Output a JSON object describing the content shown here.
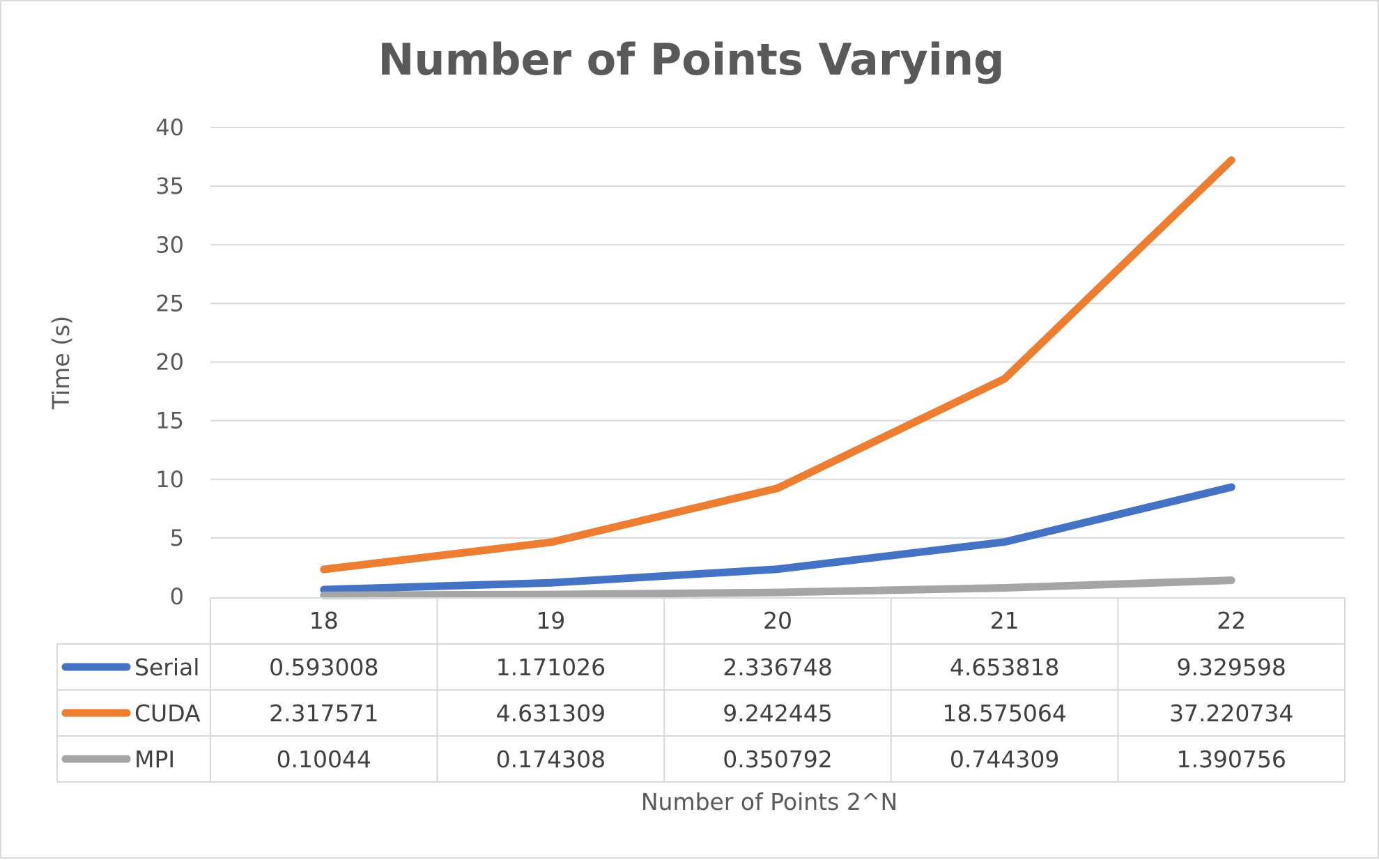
{
  "chart_data": {
    "type": "line",
    "title": "Number of Points Varying",
    "xlabel": "Number of Points 2^N",
    "ylabel": "Time (s)",
    "categories": [
      "18",
      "19",
      "20",
      "21",
      "22"
    ],
    "y_ticks": [
      "0",
      "5",
      "10",
      "15",
      "20",
      "25",
      "30",
      "35",
      "40"
    ],
    "ylim": [
      0,
      40
    ],
    "grid": true,
    "legend": "data-table",
    "series": [
      {
        "name": "Serial",
        "color": "#4472c4",
        "values": [
          0.593008,
          1.171026,
          2.336748,
          4.653818,
          9.329598
        ],
        "labels": [
          "0.593008",
          "1.171026",
          "2.336748",
          "4.653818",
          "9.329598"
        ]
      },
      {
        "name": "CUDA",
        "color": "#ed7d31",
        "values": [
          2.317571,
          4.631309,
          9.242445,
          18.575064,
          37.220734
        ],
        "labels": [
          "2.317571",
          "4.631309",
          "9.242445",
          "18.575064",
          "37.220734"
        ]
      },
      {
        "name": "MPI",
        "color": "#a5a5a5",
        "values": [
          0.10044,
          0.174308,
          0.350792,
          0.744309,
          1.390756
        ],
        "labels": [
          "0.10044",
          "0.174308",
          "0.350792",
          "0.744309",
          "1.390756"
        ]
      }
    ]
  }
}
